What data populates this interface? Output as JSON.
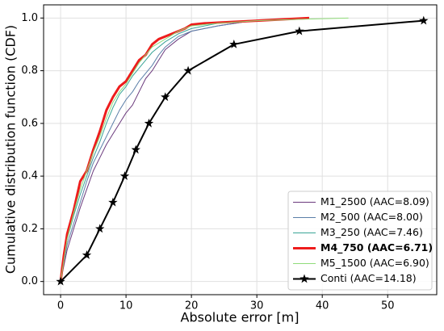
{
  "chart_data": {
    "type": "line",
    "xlabel": "Absolute error [m]",
    "ylabel": "Cumulative distribution function (CDF)",
    "xlim": [
      -2.6,
      57.5
    ],
    "ylim": [
      -0.05,
      1.05
    ],
    "xticks": [
      0,
      10,
      20,
      30,
      40,
      50
    ],
    "yticks": [
      {
        "value": 0,
        "label": "0.0"
      },
      0.2,
      0.4,
      0.6,
      0.8,
      {
        "value": 1,
        "label": "1.0"
      }
    ],
    "grid": true,
    "legend": "lower right",
    "series": [
      {
        "name": "M1_2500 (AAC=8.09)",
        "color": "#6b3a7d",
        "linewidth": 1,
        "x": [
          0,
          1,
          2,
          3,
          4,
          5,
          6,
          7,
          8,
          9,
          10,
          11,
          12,
          13,
          14,
          15,
          16,
          18,
          20,
          24,
          28,
          33,
          38
        ],
        "values": [
          0,
          0.12,
          0.2,
          0.28,
          0.35,
          0.42,
          0.47,
          0.52,
          0.56,
          0.6,
          0.64,
          0.67,
          0.72,
          0.77,
          0.8,
          0.84,
          0.88,
          0.92,
          0.95,
          0.97,
          0.985,
          0.995,
          1
        ]
      },
      {
        "name": "M2_500 (AAC=8.00)",
        "color": "#5b7fa8",
        "linewidth": 1,
        "x": [
          0,
          1,
          2,
          3,
          4,
          5,
          6,
          7,
          8,
          9,
          10,
          11,
          12,
          13,
          14,
          15,
          16,
          18,
          20,
          24,
          28,
          33,
          38
        ],
        "values": [
          0,
          0.14,
          0.22,
          0.3,
          0.38,
          0.45,
          0.5,
          0.55,
          0.6,
          0.65,
          0.69,
          0.72,
          0.76,
          0.79,
          0.82,
          0.86,
          0.89,
          0.93,
          0.95,
          0.97,
          0.985,
          0.995,
          1
        ]
      },
      {
        "name": "M3_250 (AAC=7.46)",
        "color": "#3aa597",
        "linewidth": 1,
        "x": [
          0,
          1,
          2,
          3,
          4,
          5,
          6,
          7,
          8,
          9,
          10,
          11,
          12,
          13,
          14,
          16,
          18,
          20,
          24,
          28,
          33,
          38
        ],
        "values": [
          0,
          0.16,
          0.25,
          0.33,
          0.4,
          0.47,
          0.53,
          0.6,
          0.66,
          0.71,
          0.74,
          0.78,
          0.81,
          0.84,
          0.87,
          0.91,
          0.94,
          0.96,
          0.98,
          0.99,
          0.995,
          1
        ]
      },
      {
        "name": "M4_750 (AAC=6.71)",
        "color": "#ee1c1c",
        "linewidth": 3,
        "bold": true,
        "x": [
          0,
          0.5,
          1,
          2,
          3,
          4,
          5,
          6,
          7,
          8,
          9,
          10,
          11,
          12,
          13,
          14,
          15,
          17,
          19,
          20,
          22,
          26,
          30,
          38
        ],
        "values": [
          0,
          0.1,
          0.18,
          0.27,
          0.38,
          0.42,
          0.5,
          0.57,
          0.65,
          0.7,
          0.74,
          0.76,
          0.8,
          0.84,
          0.86,
          0.9,
          0.92,
          0.94,
          0.96,
          0.975,
          0.98,
          0.985,
          0.99,
          1
        ]
      },
      {
        "name": "M5_1500 (AAC=6.90)",
        "color": "#90dc7a",
        "linewidth": 1,
        "x": [
          0,
          1,
          2,
          3,
          4,
          5,
          6,
          7,
          8,
          9,
          10,
          11,
          12,
          13,
          14,
          16,
          18,
          20,
          24,
          30,
          36,
          44
        ],
        "values": [
          0,
          0.16,
          0.26,
          0.35,
          0.42,
          0.49,
          0.55,
          0.62,
          0.68,
          0.72,
          0.75,
          0.79,
          0.83,
          0.86,
          0.89,
          0.92,
          0.95,
          0.97,
          0.98,
          0.99,
          0.995,
          1
        ]
      },
      {
        "name": "Conti (AAC=14.18)",
        "color": "#000000",
        "linewidth": 2,
        "marker": "star",
        "x": [
          0,
          4,
          6,
          8,
          9.8,
          11.5,
          13.5,
          16,
          19.5,
          26.5,
          36.5,
          55.5
        ],
        "values": [
          0,
          0.1,
          0.2,
          0.3,
          0.4,
          0.5,
          0.6,
          0.7,
          0.8,
          0.9,
          0.95,
          0.99
        ]
      }
    ]
  }
}
